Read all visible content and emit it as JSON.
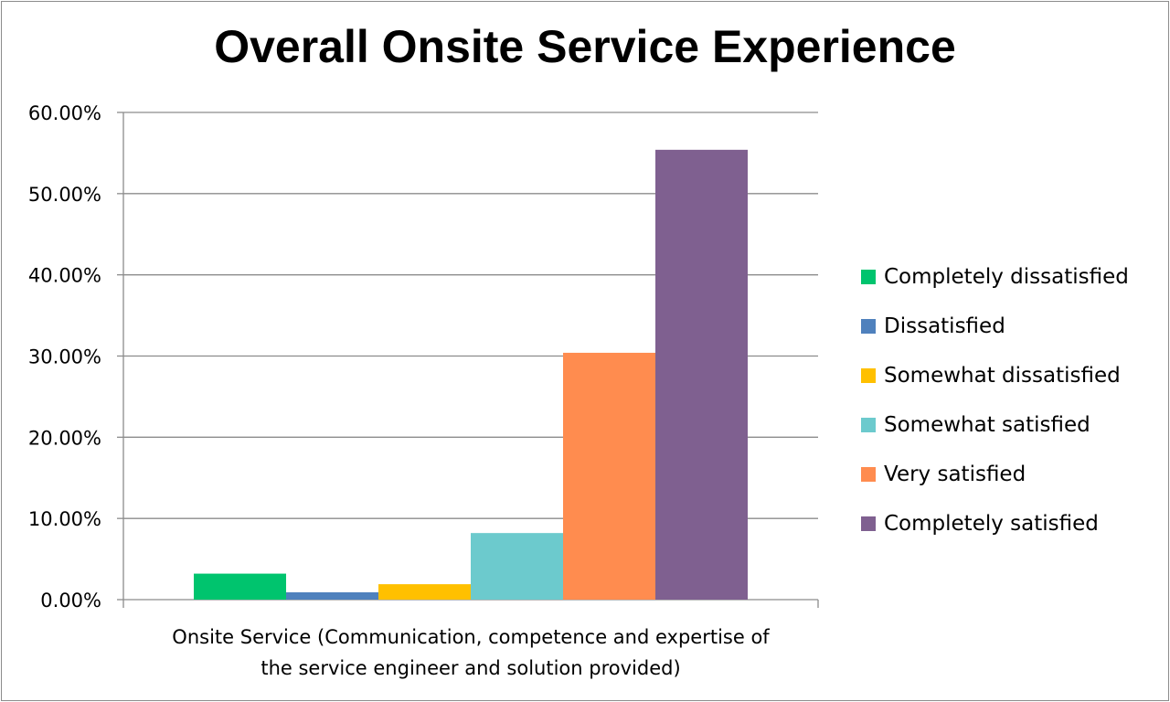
{
  "chart_data": {
    "type": "bar",
    "title": "Overall Onsite Service Experience",
    "categories": [
      "Onsite Service (Communication, competence and expertise of the service engineer and solution provided)"
    ],
    "category_lines": [
      "Onsite Service (Communication, competence and expertise of",
      "the service engineer and solution provided)"
    ],
    "series": [
      {
        "name": "Completely dissatisfied",
        "values": [
          3.2
        ],
        "color": "#00C46E"
      },
      {
        "name": "Dissatisfied",
        "values": [
          0.9
        ],
        "color": "#4F81BD"
      },
      {
        "name": "Somewhat dissatisfied",
        "values": [
          1.9
        ],
        "color": "#FFC000"
      },
      {
        "name": "Somewhat satisfied",
        "values": [
          8.2
        ],
        "color": "#6CCACD"
      },
      {
        "name": "Very satisfied",
        "values": [
          30.4
        ],
        "color": "#FF8C4F"
      },
      {
        "name": "Completely satisfied",
        "values": [
          55.4
        ],
        "color": "#7F6090"
      }
    ],
    "ylim": [
      0,
      60
    ],
    "yticks": [
      0,
      10,
      20,
      30,
      40,
      50,
      60
    ],
    "ytick_labels": [
      "0.00%",
      "10.00%",
      "20.00%",
      "30.00%",
      "40.00%",
      "50.00%",
      "60.00%"
    ],
    "xlabel": "",
    "ylabel": "",
    "grid": true,
    "legend_position": "right"
  }
}
